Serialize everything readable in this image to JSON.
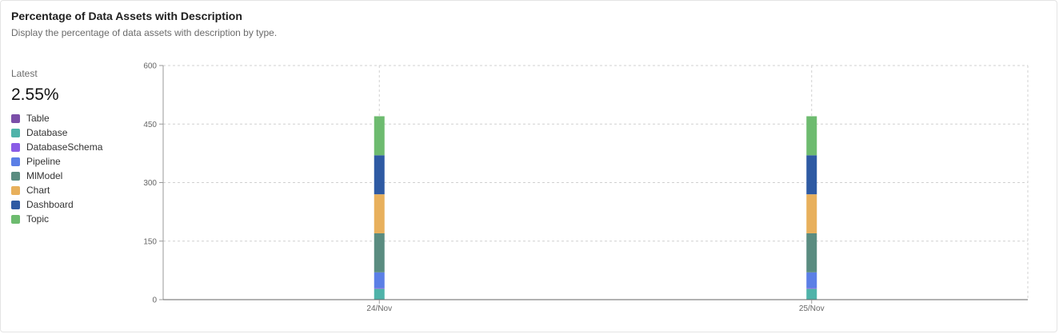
{
  "card": {
    "title": "Percentage of Data Assets with Description",
    "subtitle": "Display the percentage of data assets with description by type."
  },
  "summary": {
    "latest_label": "Latest",
    "latest_value": "2.55%"
  },
  "colors": {
    "Table": "#7b4fa8",
    "Database": "#4fb3a9",
    "DatabaseSchema": "#8a5ce6",
    "Pipeline": "#5b7fe6",
    "MlModel": "#5a8c80",
    "Chart": "#e8b05c",
    "Dashboard": "#2e5aa3",
    "Topic": "#6dbb6f"
  },
  "legend": [
    {
      "key": "Table",
      "label": "Table"
    },
    {
      "key": "Database",
      "label": "Database"
    },
    {
      "key": "DatabaseSchema",
      "label": "DatabaseSchema"
    },
    {
      "key": "Pipeline",
      "label": "Pipeline"
    },
    {
      "key": "MlModel",
      "label": "MlModel"
    },
    {
      "key": "Chart",
      "label": "Chart"
    },
    {
      "key": "Dashboard",
      "label": "Dashboard"
    },
    {
      "key": "Topic",
      "label": "Topic"
    }
  ],
  "chart_data": {
    "type": "bar",
    "stacked": true,
    "title": "Percentage of Data Assets with Description",
    "categories": [
      "24/Nov",
      "25/Nov"
    ],
    "ylim": [
      0,
      600
    ],
    "yticks": [
      0,
      150,
      300,
      450,
      600
    ],
    "grid": true,
    "series": [
      {
        "name": "Table",
        "values": [
          0,
          0
        ]
      },
      {
        "name": "Database",
        "values": [
          28,
          28
        ]
      },
      {
        "name": "DatabaseSchema",
        "values": [
          2,
          2
        ]
      },
      {
        "name": "Pipeline",
        "values": [
          40,
          40
        ]
      },
      {
        "name": "MlModel",
        "values": [
          100,
          100
        ]
      },
      {
        "name": "Chart",
        "values": [
          100,
          100
        ]
      },
      {
        "name": "Dashboard",
        "values": [
          100,
          100
        ]
      },
      {
        "name": "Topic",
        "values": [
          100,
          100
        ]
      }
    ]
  }
}
